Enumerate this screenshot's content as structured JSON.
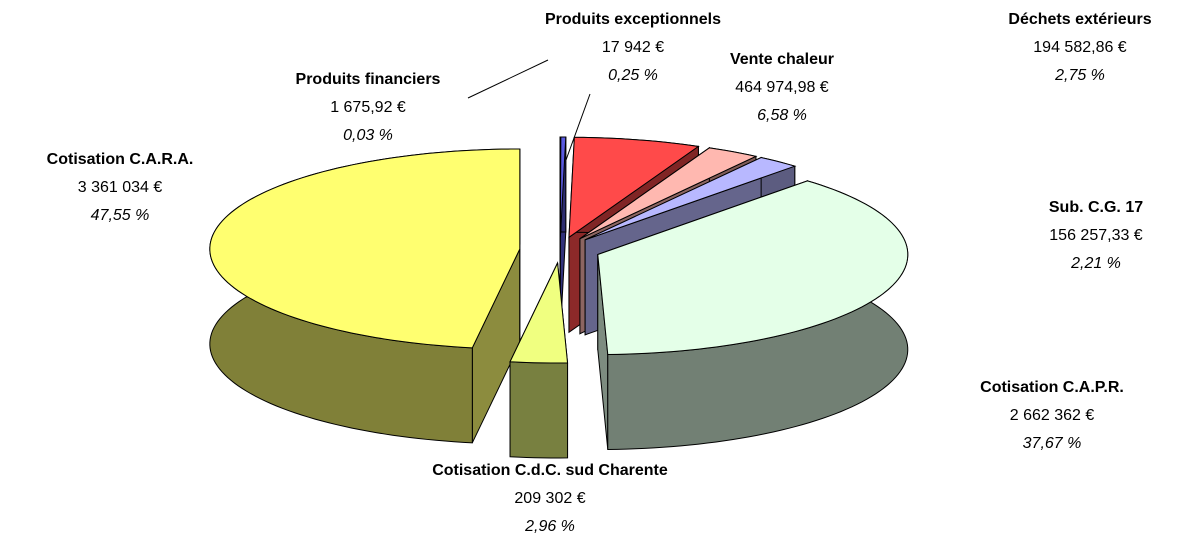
{
  "chart_data": {
    "type": "pie3d",
    "categories": [
      "Produits financiers",
      "Produits exceptionnels",
      "Vente chaleur",
      "Déchets extérieurs",
      "Sub. C.G. 17",
      "Cotisation C.A.P.R.",
      "Cotisation C.d.C. sud Charente",
      "Cotisation C.A.R.A."
    ],
    "values": [
      1675.92,
      17942,
      464974.98,
      194582.86,
      156257.33,
      2662362,
      209302,
      3361034
    ],
    "value_labels": [
      "1 675,92 €",
      "17 942 €",
      "464 974,98 €",
      "194 582,86 €",
      "156 257,33 €",
      "2 662 362 €",
      "209 302 €",
      "3 361 034 €"
    ],
    "percentages": [
      0.03,
      0.25,
      6.58,
      2.75,
      2.21,
      37.67,
      2.96,
      47.55
    ],
    "percentage_labels": [
      "0,03 %",
      "0,25 %",
      "6,58 %",
      "2,75 %",
      "2,21 %",
      "37,67 %",
      "2,96 %",
      "47,55 %"
    ],
    "colors": [
      "#8890c0",
      "#5a5ae0",
      "#ff4a4a",
      "#ffb8b0",
      "#b8b8ff",
      "#e4ffe8",
      "#f0ff80",
      "#ffff70"
    ]
  }
}
